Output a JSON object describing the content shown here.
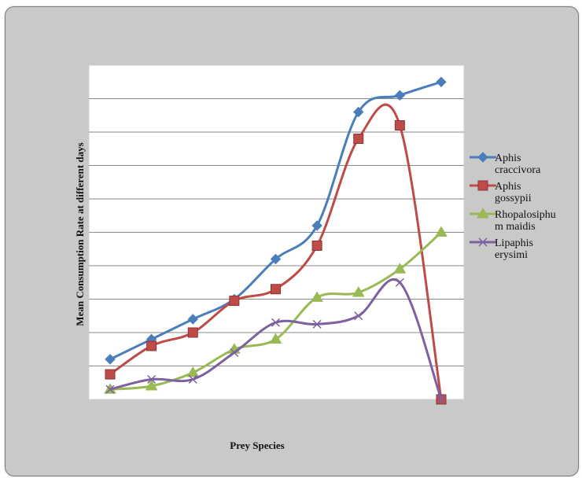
{
  "chart_data": {
    "type": "line",
    "title": "",
    "xlabel": "Prey Species",
    "ylabel": "Mean Consumption Rate at different days",
    "categories": [
      "",
      "",
      "",
      "",
      "",
      "",
      "",
      "",
      ""
    ],
    "ylim": [
      0,
      10
    ],
    "grid": true,
    "legend_position": "right",
    "series": [
      {
        "name": "Aphis craccivora",
        "legend_lines": [
          "Aphis",
          "craccivora"
        ],
        "color": "#4a7ebb",
        "marker": "diamond",
        "values": [
          1.2,
          1.8,
          2.4,
          3.0,
          4.2,
          5.2,
          8.6,
          9.1,
          9.5
        ]
      },
      {
        "name": "Aphis gossypii",
        "legend_lines": [
          "Aphis",
          "gossypii"
        ],
        "color": "#be4b48",
        "marker": "square",
        "values": [
          0.75,
          1.6,
          2.0,
          2.95,
          3.3,
          4.6,
          7.8,
          8.2,
          0
        ]
      },
      {
        "name": "Rhopalosiphum maidis",
        "legend_lines": [
          "Rhopalosiphu",
          "m maidis"
        ],
        "color": "#98b954",
        "marker": "triangle",
        "values": [
          0.3,
          0.4,
          0.8,
          1.5,
          1.8,
          3.05,
          3.2,
          3.9,
          5.0
        ]
      },
      {
        "name": "Lipaphis erysimi",
        "legend_lines": [
          "Lipaphis",
          "erysimi"
        ],
        "color": "#7d60a0",
        "marker": "x",
        "values": [
          0.3,
          0.6,
          0.6,
          1.4,
          2.3,
          2.25,
          2.5,
          3.5,
          0
        ]
      }
    ]
  }
}
